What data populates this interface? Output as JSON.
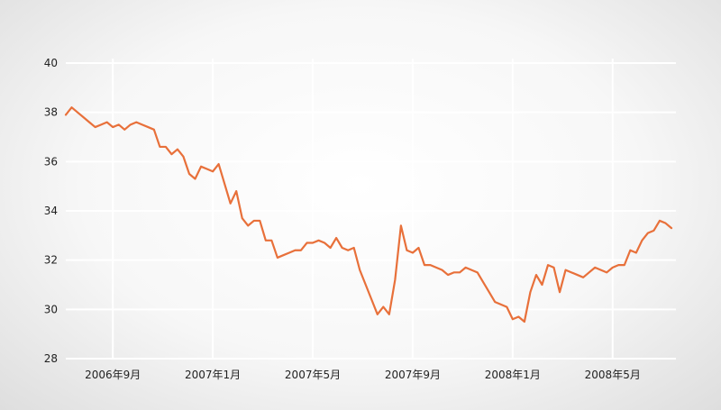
{
  "chart_data": {
    "type": "line",
    "title": "",
    "xlabel": "",
    "ylabel": "",
    "ylim": [
      28,
      40
    ],
    "yticks": [
      28,
      30,
      32,
      34,
      36,
      38,
      40
    ],
    "x_tick_labels": [
      "2006年9月",
      "2007年1月",
      "2007年5月",
      "2007年9月",
      "2008年1月",
      "2008年5月"
    ],
    "x_tick_index": [
      8,
      25,
      42,
      59,
      76,
      93
    ],
    "grid": true,
    "line_color": "#e8703a",
    "series": [
      {
        "values": [
          37.9,
          38.2,
          38.0,
          37.8,
          37.6,
          37.4,
          37.5,
          37.6,
          37.4,
          37.5,
          37.3,
          37.5,
          37.6,
          37.5,
          37.4,
          37.3,
          36.6,
          36.6,
          36.3,
          36.5,
          36.2,
          35.5,
          35.3,
          35.8,
          35.7,
          35.6,
          35.9,
          35.1,
          34.3,
          34.8,
          33.7,
          33.4,
          33.6,
          33.6,
          32.8,
          32.8,
          32.1,
          32.2,
          32.3,
          32.4,
          32.4,
          32.7,
          32.7,
          32.8,
          32.7,
          32.5,
          32.9,
          32.5,
          32.4,
          32.5,
          31.6,
          31.0,
          30.4,
          29.8,
          30.1,
          29.8,
          31.2,
          33.4,
          32.4,
          32.3,
          32.5,
          31.8,
          31.8,
          31.7,
          31.6,
          31.4,
          31.5,
          31.5,
          31.7,
          31.6,
          31.5,
          31.1,
          30.7,
          30.3,
          30.2,
          30.1,
          29.6,
          29.7,
          29.5,
          30.7,
          31.4,
          31.0,
          31.8,
          31.7,
          30.7,
          31.6,
          31.5,
          31.4,
          31.3,
          31.5,
          31.7,
          31.6,
          31.5,
          31.7,
          31.8,
          31.8,
          32.4,
          32.3,
          32.8,
          33.1,
          33.2,
          33.6,
          33.5,
          33.3
        ]
      }
    ]
  }
}
